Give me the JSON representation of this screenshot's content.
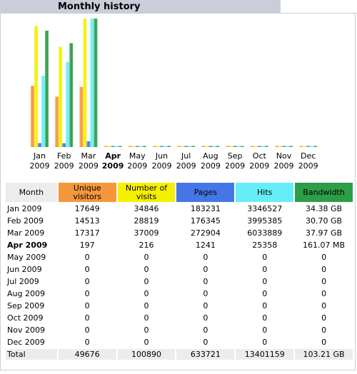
{
  "title": "Monthly history",
  "colors": {
    "unique_visitors": "#f3983c",
    "visits": "#f4f000",
    "pages": "#4576e7",
    "hits": "#66eef8",
    "bandwidth": "#2e9d48",
    "tab": "#cccdda"
  },
  "chart_data": {
    "type": "bar",
    "categories": [
      "Jan 2009",
      "Feb 2009",
      "Mar 2009",
      "Apr 2009",
      "May 2009",
      "Jun 2009",
      "Jul 2009",
      "Aug 2009",
      "Sep 2009",
      "Oct 2009",
      "Nov 2009",
      "Dec 2009"
    ],
    "month_labels": [
      {
        "mon": "Jan",
        "year": "2009",
        "current": false
      },
      {
        "mon": "Feb",
        "year": "2009",
        "current": false
      },
      {
        "mon": "Mar",
        "year": "2009",
        "current": false
      },
      {
        "mon": "Apr",
        "year": "2009",
        "current": true
      },
      {
        "mon": "May",
        "year": "2009",
        "current": false
      },
      {
        "mon": "Jun",
        "year": "2009",
        "current": false
      },
      {
        "mon": "Jul",
        "year": "2009",
        "current": false
      },
      {
        "mon": "Aug",
        "year": "2009",
        "current": false
      },
      {
        "mon": "Sep",
        "year": "2009",
        "current": false
      },
      {
        "mon": "Oct",
        "year": "2009",
        "current": false
      },
      {
        "mon": "Nov",
        "year": "2009",
        "current": false
      },
      {
        "mon": "Dec",
        "year": "2009",
        "current": false
      }
    ],
    "series": [
      {
        "key": "unique_visitors",
        "values": [
          17649,
          14513,
          17317,
          197,
          0,
          0,
          0,
          0,
          0,
          0,
          0,
          0
        ]
      },
      {
        "key": "visits",
        "values": [
          34846,
          28819,
          37009,
          216,
          0,
          0,
          0,
          0,
          0,
          0,
          0,
          0
        ]
      },
      {
        "key": "pages",
        "values": [
          183231,
          176345,
          272904,
          1241,
          0,
          0,
          0,
          0,
          0,
          0,
          0,
          0
        ]
      },
      {
        "key": "hits",
        "values": [
          3346527,
          3995385,
          6033889,
          25358,
          0,
          0,
          0,
          0,
          0,
          0,
          0,
          0
        ]
      },
      {
        "key": "bandwidth_gb",
        "values": [
          34.38,
          30.7,
          37.97,
          0.157,
          0,
          0,
          0,
          0,
          0,
          0,
          0,
          0
        ]
      }
    ]
  },
  "table": {
    "headers": {
      "month": "Month",
      "unique_1": "Unique",
      "unique_2": "visitors",
      "visits_1": "Number of",
      "visits_2": "visits",
      "pages": "Pages",
      "hits": "Hits",
      "bandwidth": "Bandwidth"
    },
    "rows": [
      {
        "month": "Jan 2009",
        "unique": "17649",
        "visits": "34846",
        "pages": "183231",
        "hits": "3346527",
        "bandwidth": "34.38 GB",
        "current": false
      },
      {
        "month": "Feb 2009",
        "unique": "14513",
        "visits": "28819",
        "pages": "176345",
        "hits": "3995385",
        "bandwidth": "30.70 GB",
        "current": false
      },
      {
        "month": "Mar 2009",
        "unique": "17317",
        "visits": "37009",
        "pages": "272904",
        "hits": "6033889",
        "bandwidth": "37.97 GB",
        "current": false
      },
      {
        "month": "Apr 2009",
        "unique": "197",
        "visits": "216",
        "pages": "1241",
        "hits": "25358",
        "bandwidth": "161.07 MB",
        "current": true
      },
      {
        "month": "May 2009",
        "unique": "0",
        "visits": "0",
        "pages": "0",
        "hits": "0",
        "bandwidth": "0",
        "current": false
      },
      {
        "month": "Jun 2009",
        "unique": "0",
        "visits": "0",
        "pages": "0",
        "hits": "0",
        "bandwidth": "0",
        "current": false
      },
      {
        "month": "Jul 2009",
        "unique": "0",
        "visits": "0",
        "pages": "0",
        "hits": "0",
        "bandwidth": "0",
        "current": false
      },
      {
        "month": "Aug 2009",
        "unique": "0",
        "visits": "0",
        "pages": "0",
        "hits": "0",
        "bandwidth": "0",
        "current": false
      },
      {
        "month": "Sep 2009",
        "unique": "0",
        "visits": "0",
        "pages": "0",
        "hits": "0",
        "bandwidth": "0",
        "current": false
      },
      {
        "month": "Oct 2009",
        "unique": "0",
        "visits": "0",
        "pages": "0",
        "hits": "0",
        "bandwidth": "0",
        "current": false
      },
      {
        "month": "Nov 2009",
        "unique": "0",
        "visits": "0",
        "pages": "0",
        "hits": "0",
        "bandwidth": "0",
        "current": false
      },
      {
        "month": "Dec 2009",
        "unique": "0",
        "visits": "0",
        "pages": "0",
        "hits": "0",
        "bandwidth": "0",
        "current": false
      }
    ],
    "total": {
      "month": "Total",
      "unique": "49676",
      "visits": "100890",
      "pages": "633721",
      "hits": "13401159",
      "bandwidth": "103.21 GB"
    }
  }
}
